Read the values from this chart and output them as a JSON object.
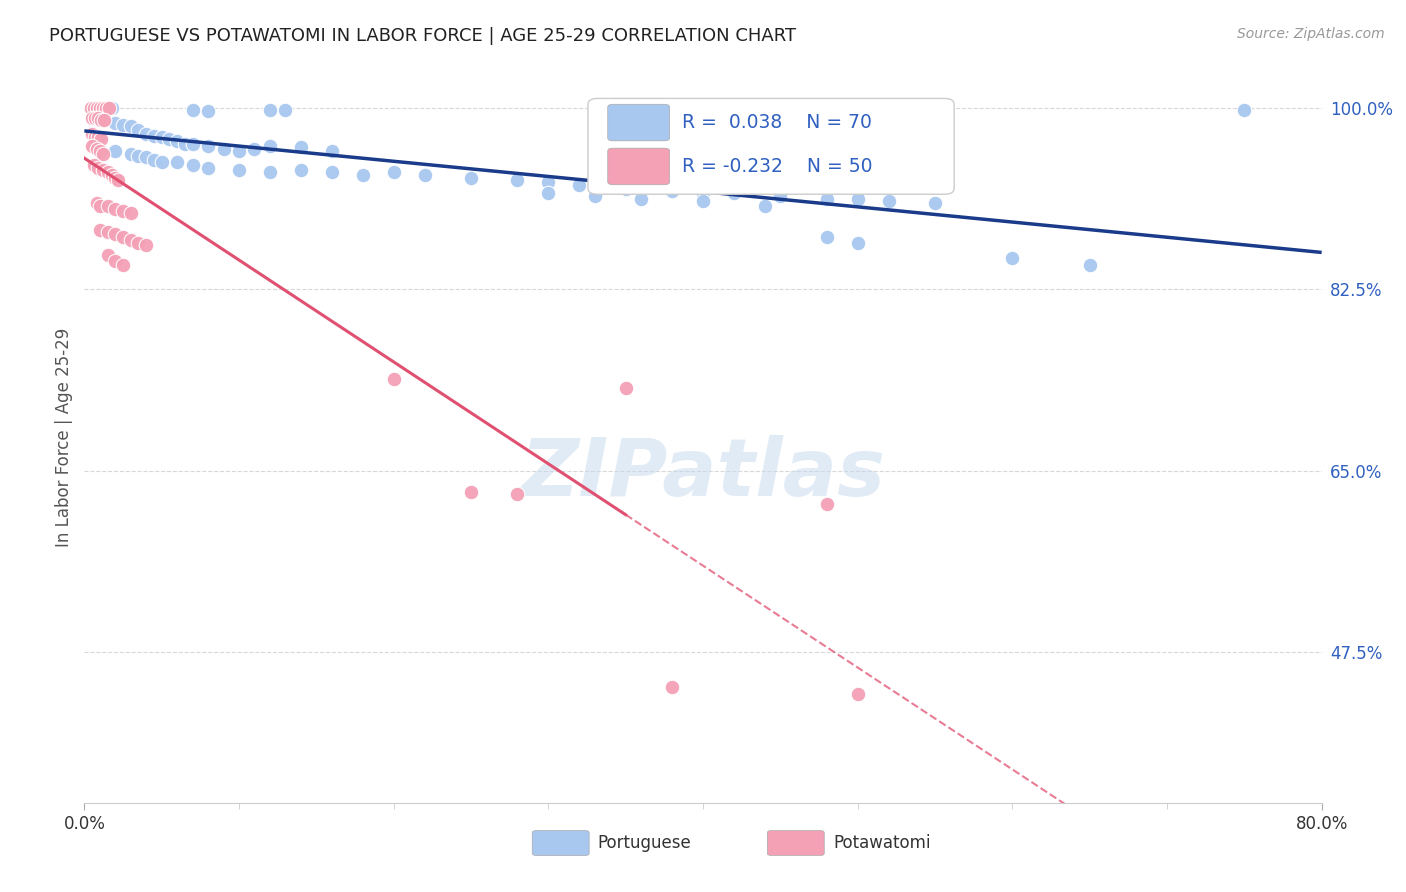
{
  "title": "PORTUGUESE VS POTAWATOMI IN LABOR FORCE | AGE 25-29 CORRELATION CHART",
  "source": "Source: ZipAtlas.com",
  "xlabel_ticks": [
    "0.0%",
    "80.0%"
  ],
  "ylabel_ticks_vals": [
    1.0,
    0.825,
    0.65,
    0.475
  ],
  "ylabel_ticks_labels": [
    "100.0%",
    "82.5%",
    "65.0%",
    "47.5%"
  ],
  "ylabel_label": "In Labor Force | Age 25-29",
  "xmin": 0.0,
  "xmax": 0.8,
  "ymin": 0.33,
  "ymax": 1.035,
  "portuguese_R": 0.038,
  "portuguese_N": 70,
  "potawatomi_R": -0.232,
  "potawatomi_N": 50,
  "portuguese_color": "#a8c8f0",
  "potawatomi_color": "#f4a0b5",
  "portuguese_line_color": "#1a3a8a",
  "potawatomi_line_color": "#e05070",
  "watermark": "ZIPatlas",
  "background_color": "#ffffff",
  "grid_color": "#d8d8d8",
  "tick_label_color_y": "#3060c0",
  "legend_box_color": "#ffffff",
  "legend_border_color": "#cccccc"
}
